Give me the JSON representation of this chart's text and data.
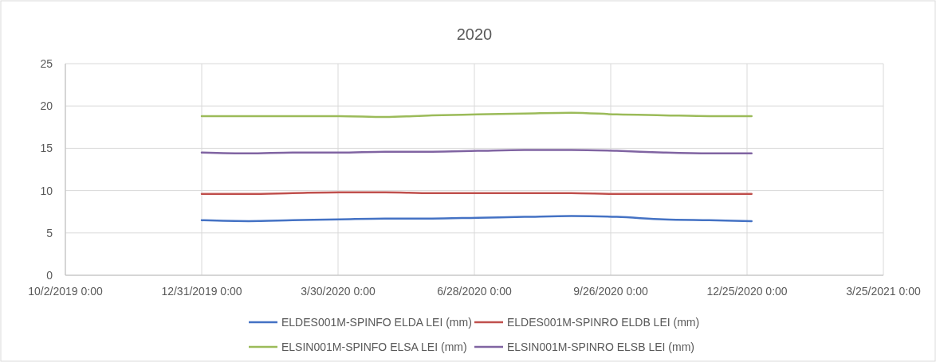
{
  "chart_data": {
    "type": "line",
    "title": "2020",
    "x": [
      "2019-12-31",
      "2020-01-31",
      "2020-02-29",
      "2020-03-31",
      "2020-04-30",
      "2020-05-31",
      "2020-06-30",
      "2020-07-31",
      "2020-08-31",
      "2020-09-30",
      "2020-10-31",
      "2020-11-30",
      "2020-12-28"
    ],
    "series": [
      {
        "name": "ELDES001M-SPINFO ELDA LEI (mm)",
        "color": "#4472c4",
        "values": [
          6.5,
          6.4,
          6.5,
          6.6,
          6.7,
          6.7,
          6.8,
          6.9,
          7.0,
          6.9,
          6.6,
          6.5,
          6.4
        ]
      },
      {
        "name": "ELDES001M-SPINRO ELDB LEI (mm)",
        "color": "#c0504d",
        "values": [
          9.6,
          9.6,
          9.7,
          9.8,
          9.8,
          9.7,
          9.7,
          9.7,
          9.7,
          9.6,
          9.6,
          9.6,
          9.6
        ]
      },
      {
        "name": "ELSIN001M-SPINFO ELSA LEI (mm)",
        "color": "#9bbb59",
        "values": [
          18.8,
          18.8,
          18.8,
          18.8,
          18.7,
          18.9,
          19.0,
          19.1,
          19.2,
          19.0,
          18.9,
          18.8,
          18.8
        ]
      },
      {
        "name": "ELSIN001M-SPINRO ELSB LEI (mm)",
        "color": "#8064a2",
        "values": [
          14.5,
          14.4,
          14.5,
          14.5,
          14.6,
          14.6,
          14.7,
          14.8,
          14.8,
          14.7,
          14.5,
          14.4,
          14.4
        ]
      }
    ],
    "xlim": [
      "2019-10-02",
      "2021-03-25"
    ],
    "xticks": [
      {
        "value": "2019-10-02",
        "label": "10/2/2019 0:00"
      },
      {
        "value": "2019-12-31",
        "label": "12/31/2019 0:00"
      },
      {
        "value": "2020-03-30",
        "label": "3/30/2020 0:00"
      },
      {
        "value": "2020-06-28",
        "label": "6/28/2020 0:00"
      },
      {
        "value": "2020-09-26",
        "label": "9/26/2020 0:00"
      },
      {
        "value": "2020-12-25",
        "label": "12/25/2020 0:00"
      },
      {
        "value": "2021-03-25",
        "label": "3/25/2021 0:00"
      }
    ],
    "ylim": [
      0,
      25
    ],
    "yticks": [
      0,
      5,
      10,
      15,
      20,
      25
    ],
    "grid": true,
    "legend": "bottom",
    "marker": "none",
    "line_style": "solid"
  }
}
